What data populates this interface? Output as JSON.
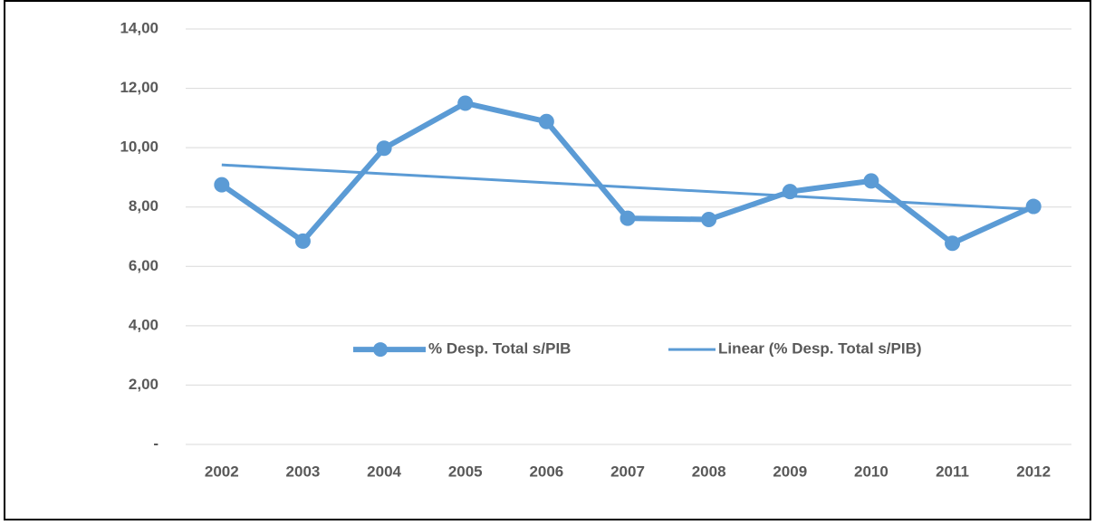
{
  "chart_data": {
    "type": "line",
    "categories": [
      "2002",
      "2003",
      "2004",
      "2005",
      "2006",
      "2007",
      "2008",
      "2009",
      "2010",
      "2011",
      "2012"
    ],
    "series": [
      {
        "name": "% Desp. Total s/PIB",
        "color": "#5b9bd5",
        "values": [
          8.75,
          6.85,
          9.98,
          11.5,
          10.88,
          7.62,
          7.58,
          8.52,
          8.88,
          6.78,
          8.02
        ]
      },
      {
        "name": "Linear (% Desp. Total s/PIB)",
        "color": "#5b9bd5",
        "values": [
          9.42,
          9.27,
          9.12,
          8.97,
          8.82,
          8.67,
          8.52,
          8.37,
          8.22,
          8.07,
          7.92
        ]
      }
    ],
    "ylim": [
      0,
      14
    ],
    "yticks": [
      {
        "value": 0,
        "label": "-"
      },
      {
        "value": 2,
        "label": "2,00"
      },
      {
        "value": 4,
        "label": "4,00"
      },
      {
        "value": 6,
        "label": "6,00"
      },
      {
        "value": 8,
        "label": "8,00"
      },
      {
        "value": 10,
        "label": "10,00"
      },
      {
        "value": 12,
        "label": "12,00"
      },
      {
        "value": 14,
        "label": "14,00"
      }
    ],
    "grid": true,
    "legend": "center"
  }
}
